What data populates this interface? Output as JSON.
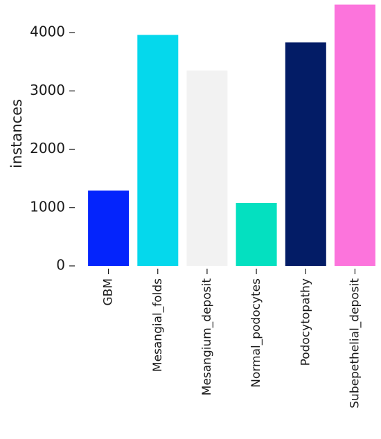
{
  "chart_data": {
    "type": "bar",
    "title": "",
    "xlabel": "",
    "ylabel": "instances",
    "categories": [
      "GBM",
      "Mesangial_folds",
      "Mesangium_deposit",
      "Normal_podocytes",
      "Podocytopathy",
      "Subepethelial_deposit"
    ],
    "values": [
      1290,
      3960,
      3350,
      1080,
      3830,
      4480
    ],
    "colors": [
      "#0424fc",
      "#05d8ec",
      "#f2f2f2",
      "#04e0c0",
      "#031c66",
      "#fc74dc"
    ],
    "yticks": [
      0,
      1000,
      2000,
      3000,
      4000
    ],
    "ylim": [
      0,
      4500
    ],
    "grid": false,
    "legend": "none"
  }
}
